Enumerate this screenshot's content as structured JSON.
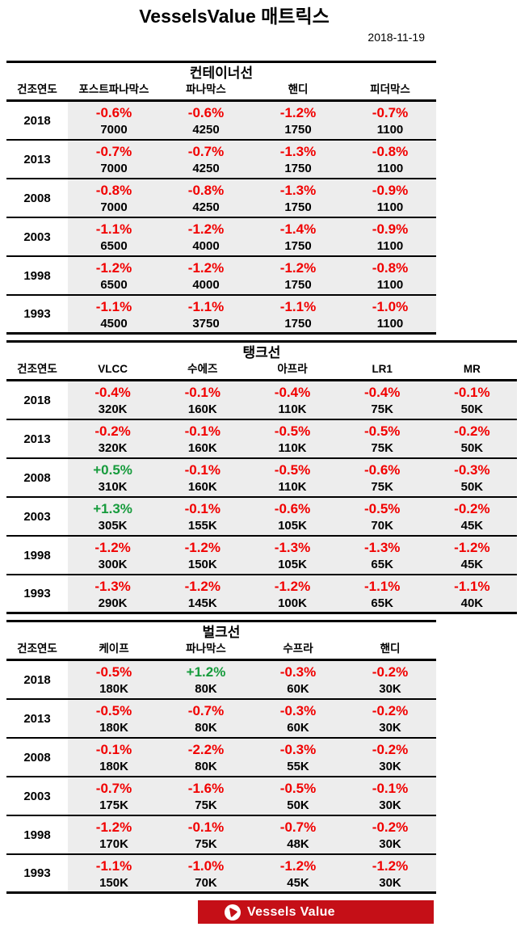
{
  "page": {
    "title": "VesselsValue 매트릭스",
    "date": "2018-11-19"
  },
  "colors": {
    "neg": "#f10000",
    "pos": "#169b3c",
    "cellbg": "#ededed",
    "banner": "#c50f17"
  },
  "year_header": "건조연도",
  "tables": [
    {
      "title": "컨테이너선",
      "wide": false,
      "columns": [
        "포스트파나막스",
        "파나막스",
        "핸디",
        "피더막스"
      ],
      "rows": [
        {
          "year": "2018",
          "cells": [
            {
              "pct": "-0.6%",
              "value": "7000"
            },
            {
              "pct": "-0.6%",
              "value": "4250"
            },
            {
              "pct": "-1.2%",
              "value": "1750"
            },
            {
              "pct": "-0.7%",
              "value": "1100"
            }
          ]
        },
        {
          "year": "2013",
          "cells": [
            {
              "pct": "-0.7%",
              "value": "7000"
            },
            {
              "pct": "-0.7%",
              "value": "4250"
            },
            {
              "pct": "-1.3%",
              "value": "1750"
            },
            {
              "pct": "-0.8%",
              "value": "1100"
            }
          ]
        },
        {
          "year": "2008",
          "cells": [
            {
              "pct": "-0.8%",
              "value": "7000"
            },
            {
              "pct": "-0.8%",
              "value": "4250"
            },
            {
              "pct": "-1.3%",
              "value": "1750"
            },
            {
              "pct": "-0.9%",
              "value": "1100"
            }
          ]
        },
        {
          "year": "2003",
          "cells": [
            {
              "pct": "-1.1%",
              "value": "6500"
            },
            {
              "pct": "-1.2%",
              "value": "4000"
            },
            {
              "pct": "-1.4%",
              "value": "1750"
            },
            {
              "pct": "-0.9%",
              "value": "1100"
            }
          ]
        },
        {
          "year": "1998",
          "cells": [
            {
              "pct": "-1.2%",
              "value": "6500"
            },
            {
              "pct": "-1.2%",
              "value": "4000"
            },
            {
              "pct": "-1.2%",
              "value": "1750"
            },
            {
              "pct": "-0.8%",
              "value": "1100"
            }
          ]
        },
        {
          "year": "1993",
          "cells": [
            {
              "pct": "-1.1%",
              "value": "4500"
            },
            {
              "pct": "-1.1%",
              "value": "3750"
            },
            {
              "pct": "-1.1%",
              "value": "1750"
            },
            {
              "pct": "-1.0%",
              "value": "1100"
            }
          ]
        }
      ]
    },
    {
      "title": "탱크선",
      "wide": true,
      "columns": [
        "VLCC",
        "수에즈",
        "아프라",
        "LR1",
        "MR"
      ],
      "rows": [
        {
          "year": "2018",
          "cells": [
            {
              "pct": "-0.4%",
              "value": "320K"
            },
            {
              "pct": "-0.1%",
              "value": "160K"
            },
            {
              "pct": "-0.4%",
              "value": "110K"
            },
            {
              "pct": "-0.4%",
              "value": "75K"
            },
            {
              "pct": "-0.1%",
              "value": "50K"
            }
          ]
        },
        {
          "year": "2013",
          "cells": [
            {
              "pct": "-0.2%",
              "value": "320K"
            },
            {
              "pct": "-0.1%",
              "value": "160K"
            },
            {
              "pct": "-0.5%",
              "value": "110K"
            },
            {
              "pct": "-0.5%",
              "value": "75K"
            },
            {
              "pct": "-0.2%",
              "value": "50K"
            }
          ]
        },
        {
          "year": "2008",
          "cells": [
            {
              "pct": "+0.5%",
              "value": "310K"
            },
            {
              "pct": "-0.1%",
              "value": "160K"
            },
            {
              "pct": "-0.5%",
              "value": "110K"
            },
            {
              "pct": "-0.6%",
              "value": "75K"
            },
            {
              "pct": "-0.3%",
              "value": "50K"
            }
          ]
        },
        {
          "year": "2003",
          "cells": [
            {
              "pct": "+1.3%",
              "value": "305K"
            },
            {
              "pct": "-0.1%",
              "value": "155K"
            },
            {
              "pct": "-0.6%",
              "value": "105K"
            },
            {
              "pct": "-0.5%",
              "value": "70K"
            },
            {
              "pct": "-0.2%",
              "value": "45K"
            }
          ]
        },
        {
          "year": "1998",
          "cells": [
            {
              "pct": "-1.2%",
              "value": "300K"
            },
            {
              "pct": "-1.2%",
              "value": "150K"
            },
            {
              "pct": "-1.3%",
              "value": "105K"
            },
            {
              "pct": "-1.3%",
              "value": "65K"
            },
            {
              "pct": "-1.2%",
              "value": "45K"
            }
          ]
        },
        {
          "year": "1993",
          "cells": [
            {
              "pct": "-1.3%",
              "value": "290K"
            },
            {
              "pct": "-1.2%",
              "value": "145K"
            },
            {
              "pct": "-1.2%",
              "value": "100K"
            },
            {
              "pct": "-1.1%",
              "value": "65K"
            },
            {
              "pct": "-1.1%",
              "value": "40K"
            }
          ]
        }
      ]
    },
    {
      "title": "벌크선",
      "wide": false,
      "columns": [
        "케이프",
        "파나막스",
        "수프라",
        "핸디"
      ],
      "rows": [
        {
          "year": "2018",
          "cells": [
            {
              "pct": "-0.5%",
              "value": "180K"
            },
            {
              "pct": "+1.2%",
              "value": "80K"
            },
            {
              "pct": "-0.3%",
              "value": "60K"
            },
            {
              "pct": "-0.2%",
              "value": "30K"
            }
          ]
        },
        {
          "year": "2013",
          "cells": [
            {
              "pct": "-0.5%",
              "value": "180K"
            },
            {
              "pct": "-0.7%",
              "value": "80K"
            },
            {
              "pct": "-0.3%",
              "value": "60K"
            },
            {
              "pct": "-0.2%",
              "value": "30K"
            }
          ]
        },
        {
          "year": "2008",
          "cells": [
            {
              "pct": "-0.1%",
              "value": "180K"
            },
            {
              "pct": "-2.2%",
              "value": "80K"
            },
            {
              "pct": "-0.3%",
              "value": "55K"
            },
            {
              "pct": "-0.2%",
              "value": "30K"
            }
          ]
        },
        {
          "year": "2003",
          "cells": [
            {
              "pct": "-0.7%",
              "value": "175K"
            },
            {
              "pct": "-1.6%",
              "value": "75K"
            },
            {
              "pct": "-0.5%",
              "value": "50K"
            },
            {
              "pct": "-0.1%",
              "value": "30K"
            }
          ]
        },
        {
          "year": "1998",
          "cells": [
            {
              "pct": "-1.2%",
              "value": "170K"
            },
            {
              "pct": "-0.1%",
              "value": "75K"
            },
            {
              "pct": "-0.7%",
              "value": "48K"
            },
            {
              "pct": "-0.2%",
              "value": "30K"
            }
          ]
        },
        {
          "year": "1993",
          "cells": [
            {
              "pct": "-1.1%",
              "value": "150K"
            },
            {
              "pct": "-1.0%",
              "value": "70K"
            },
            {
              "pct": "-1.2%",
              "value": "45K"
            },
            {
              "pct": "-1.2%",
              "value": "30K"
            }
          ]
        }
      ]
    }
  ],
  "footer": {
    "brand": "Vessels Value",
    "logo_icon": "vesselsvalue-arrow-icon"
  }
}
